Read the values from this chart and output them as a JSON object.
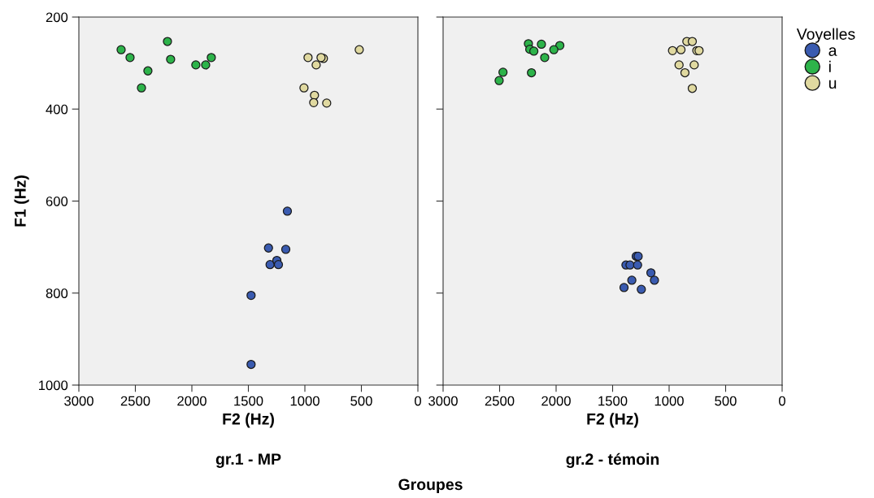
{
  "chart_data": [
    {
      "type": "scatter",
      "title": "gr.1 - MP",
      "xlabel": "F2 (Hz)",
      "ylabel": "F1 (Hz)",
      "annotations": [
        "Groupes"
      ],
      "xlim": [
        3000,
        0
      ],
      "xticks": [
        3000,
        2500,
        2000,
        1500,
        1000,
        500,
        0
      ],
      "ylim": [
        1000,
        200
      ],
      "yticks": [
        200,
        400,
        600,
        800,
        1000
      ],
      "grid": false,
      "legend": false,
      "marker": "circle",
      "series": [
        {
          "color": "#3a5bb0",
          "x": [
            1155,
            1322,
            1169,
            1308,
            1248,
            1234,
            1476,
            1476
          ],
          "values": [
            622,
            702,
            705,
            738,
            729,
            738,
            805,
            955
          ]
        },
        {
          "color": "#2db34a",
          "x": [
            2626,
            2547,
            2216,
            2389,
            2188,
            2446,
            1965,
            1878,
            1828
          ],
          "values": [
            271,
            288,
            253,
            317,
            292,
            354,
            304,
            304,
            288
          ]
        },
        {
          "color": "#e0d9a0",
          "x": [
            519,
            972,
            836,
            857,
            900,
            1008,
            915,
            922,
            807
          ],
          "values": [
            271,
            288,
            290,
            288,
            304,
            354,
            370,
            386,
            387
          ]
        }
      ]
    },
    {
      "type": "scatter",
      "title": "gr.2 - témoin",
      "xlabel": "F2 (Hz)",
      "legend_title": "Voyelles",
      "xlim": [
        3000,
        0
      ],
      "xticks": [
        3000,
        2500,
        2000,
        1500,
        1000,
        500,
        0
      ],
      "ylim": [
        1000,
        200
      ],
      "yticks": [
        200,
        400,
        600,
        800,
        1000
      ],
      "tick_labels": "x",
      "grid": false,
      "legend": "right",
      "marker": "circle",
      "series": [
        {
          "name": "a",
          "color": "#3a5bb0",
          "x": [
            1291,
            1274,
            1382,
            1346,
            1279,
            1161,
            1130,
            1330,
            1399,
            1246
          ],
          "values": [
            720,
            720,
            739,
            739,
            739,
            756,
            772,
            772,
            788,
            792
          ]
        },
        {
          "name": "i",
          "color": "#2db34a",
          "x": [
            2245,
            2130,
            1967,
            2020,
            2233,
            2197,
            2101,
            2470,
            2218,
            2504
          ],
          "values": [
            258,
            259,
            262,
            271,
            270,
            274,
            288,
            320,
            321,
            338
          ]
        },
        {
          "name": "u",
          "color": "#e0d9a0",
          "x": [
            843,
            795,
            970,
            895,
            755,
            735,
            912,
            778,
            860,
            795
          ],
          "values": [
            253,
            253,
            273,
            271,
            273,
            273,
            304,
            304,
            321,
            355
          ]
        }
      ]
    }
  ]
}
